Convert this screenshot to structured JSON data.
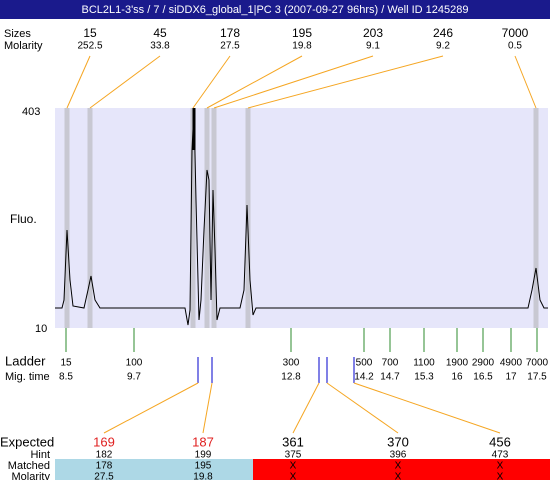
{
  "header": {
    "title": "BCL2L1-3'ss / 7 / siDDX6_global_1|PC 3 (2007-09-27 96hrs) / Well ID 1245289"
  },
  "peaks": {
    "size_label": "Sizes",
    "molarity_label": "Molarity",
    "sizes": [
      15,
      45,
      178,
      195,
      203,
      246,
      7000
    ],
    "molarities": [
      252.5,
      33.8,
      27.5,
      19.8,
      9.1,
      9.2,
      0.5
    ]
  },
  "axis": {
    "top": 403,
    "bottom": 10,
    "label": "Fluo."
  },
  "ladder": {
    "label": "Ladder",
    "time_label": "Mig. time",
    "sizes": [
      15,
      100,
      300,
      500,
      700,
      1100,
      1900,
      2900,
      4900,
      7000
    ],
    "times": [
      8.5,
      9.7,
      12.8,
      14.2,
      14.7,
      15.3,
      16,
      16.5,
      17,
      17.5
    ]
  },
  "table": {
    "expected_label": "Expected",
    "hint_label": "Hint",
    "matched_label": "Matched",
    "molarity_label": "Molarity",
    "expected": [
      169,
      187,
      361,
      370,
      456
    ],
    "hint": [
      182,
      199,
      375,
      396,
      473
    ],
    "matched": [
      178,
      195,
      "X",
      "X",
      "X"
    ],
    "molarity": [
      27.5,
      19.8,
      "X",
      "X",
      "X"
    ]
  }
}
